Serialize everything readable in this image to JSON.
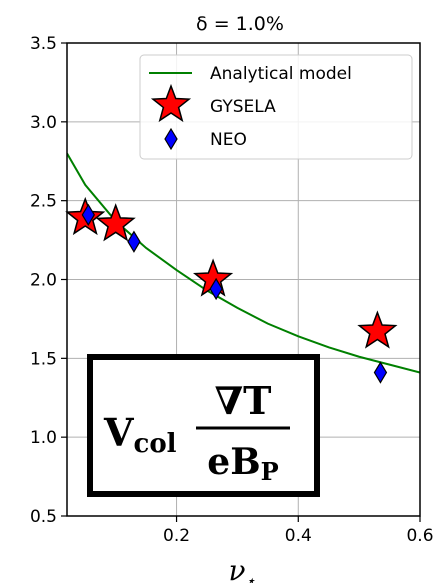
{
  "chart_data": {
    "type": "scatter",
    "title": "δ = 1.0%",
    "xlabel": "ν",
    "xlabel_sub": "⋆",
    "ylabel": "",
    "xlim": [
      0.02,
      0.6
    ],
    "ylim": [
      0.5,
      3.5
    ],
    "x_ticks": [
      0.2,
      0.4,
      0.6
    ],
    "x_tick_labels": [
      "0.2",
      "0.4",
      "0.6"
    ],
    "y_ticks": [
      0.5,
      1.0,
      1.5,
      2.0,
      2.5,
      3.0,
      3.5
    ],
    "y_tick_labels": [
      "0.5",
      "1.0",
      "1.5",
      "2.0",
      "2.5",
      "3.0",
      "3.5"
    ],
    "grid": true,
    "legend_position": "top-right",
    "series": [
      {
        "name": "Analytical model",
        "kind": "line",
        "color": "#008000",
        "x": [
          0.02,
          0.05,
          0.1,
          0.15,
          0.2,
          0.25,
          0.3,
          0.35,
          0.4,
          0.45,
          0.5,
          0.55,
          0.6
        ],
        "y": [
          2.8,
          2.6,
          2.37,
          2.2,
          2.06,
          1.93,
          1.82,
          1.72,
          1.64,
          1.57,
          1.51,
          1.46,
          1.41
        ]
      },
      {
        "name": "GYSELA",
        "kind": "star",
        "color": "#ff0000",
        "x": [
          0.05,
          0.1,
          0.26,
          0.53
        ],
        "y": [
          2.39,
          2.35,
          2.0,
          1.67
        ]
      },
      {
        "name": "NEO",
        "kind": "diamond",
        "color": "#0000ff",
        "x": [
          0.055,
          0.13,
          0.265,
          0.535
        ],
        "y": [
          2.41,
          2.24,
          1.94,
          1.41
        ]
      }
    ],
    "annotation": {
      "main": "V",
      "main_sub": "col",
      "numerator": "∇T",
      "denominator": "eB",
      "denominator_sub": "P"
    }
  }
}
